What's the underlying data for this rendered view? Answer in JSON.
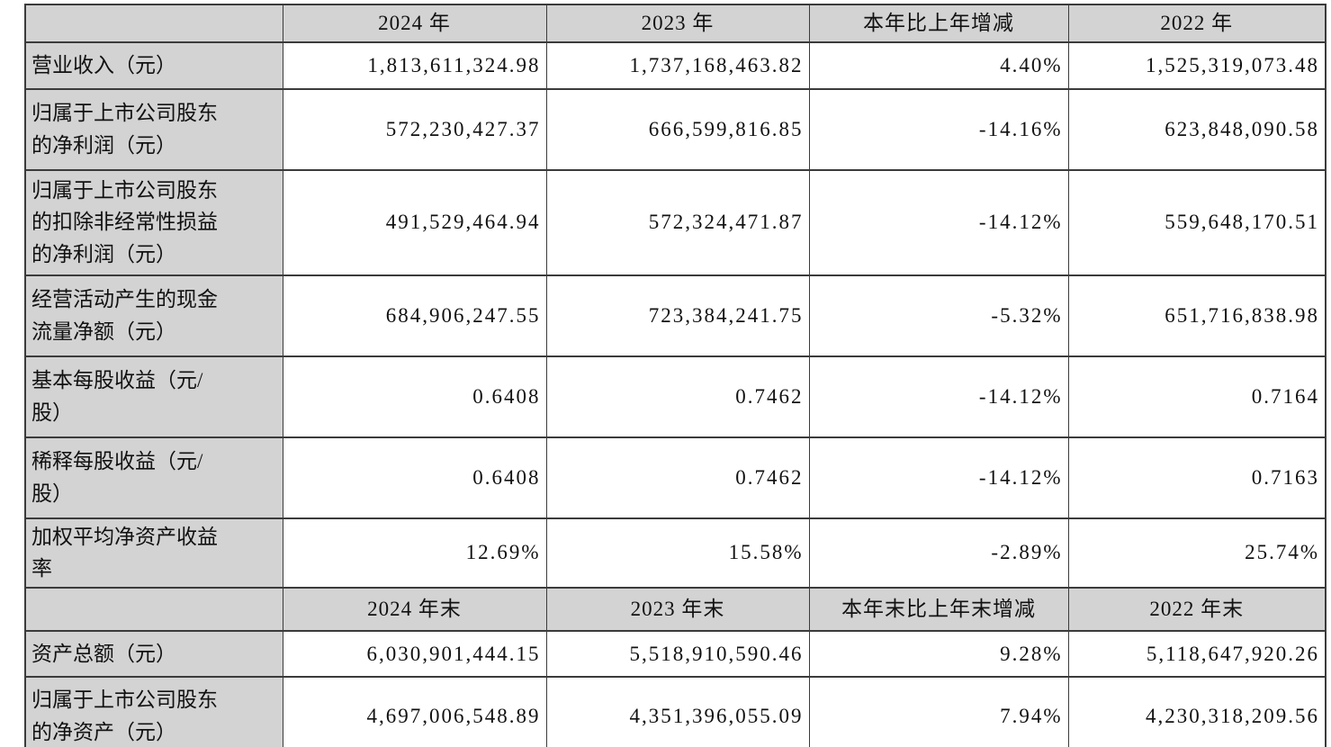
{
  "table": {
    "sections": [
      {
        "header": [
          "",
          "2024 年",
          "2023 年",
          "本年比上年增减",
          "2022 年"
        ],
        "rows": [
          {
            "label": "营业收入（元）",
            "cells": [
              "1,813,611,324.98",
              "1,737,168,463.82",
              "4.40%",
              "1,525,319,073.48"
            ]
          },
          {
            "label": "归属于上市公司股东\n的净利润（元）",
            "cells": [
              "572,230,427.37",
              "666,599,816.85",
              "-14.16%",
              "623,848,090.58"
            ]
          },
          {
            "label": "归属于上市公司股东\n的扣除非经常性损益\n的净利润（元）",
            "cells": [
              "491,529,464.94",
              "572,324,471.87",
              "-14.12%",
              "559,648,170.51"
            ]
          },
          {
            "label": "经营活动产生的现金\n流量净额（元）",
            "cells": [
              "684,906,247.55",
              "723,384,241.75",
              "-5.32%",
              "651,716,838.98"
            ]
          },
          {
            "label": "基本每股收益（元/\n股）",
            "cells": [
              "0.6408",
              "0.7462",
              "-14.12%",
              "0.7164"
            ]
          },
          {
            "label": "稀释每股收益（元/\n股）",
            "cells": [
              "0.6408",
              "0.7462",
              "-14.12%",
              "0.7163"
            ]
          },
          {
            "label": "加权平均净资产收益\n率",
            "cells": [
              "12.69%",
              "15.58%",
              "-2.89%",
              "25.74%"
            ]
          }
        ]
      },
      {
        "header": [
          "",
          "2024 年末",
          "2023 年末",
          "本年末比上年末增减",
          "2022 年末"
        ],
        "rows": [
          {
            "label": "资产总额（元）",
            "cells": [
              "6,030,901,444.15",
              "5,518,910,590.46",
              "9.28%",
              "5,118,647,920.26"
            ]
          },
          {
            "label": "归属于上市公司股东\n的净资产（元）",
            "cells": [
              "4,697,006,548.89",
              "4,351,396,055.09",
              "7.94%",
              "4,230,318,209.56"
            ]
          }
        ]
      }
    ],
    "colors": {
      "header_fill": "#d3d3d3",
      "border": "#3b3b3b",
      "text": "#111111",
      "data_cell_fill": "#ffffff"
    }
  }
}
